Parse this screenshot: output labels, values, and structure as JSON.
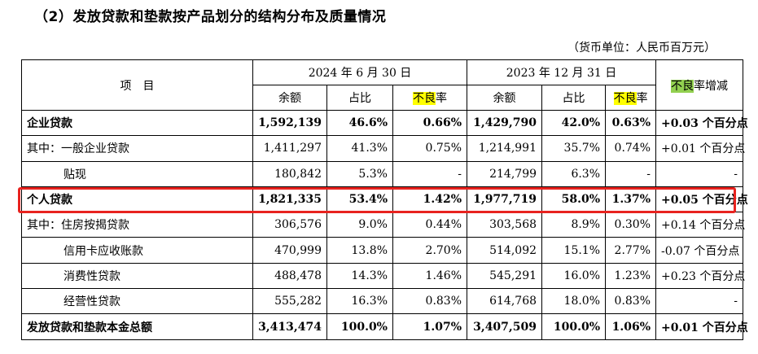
{
  "title": "（2）发放贷款和垫款按产品划分的结构分布及质量情况",
  "unit": "（货币单位：人民币百万元）",
  "header": {
    "item": "项　目",
    "period1": "2024 年 6 月 30 日",
    "period2": "2023 年 12 月 31 日",
    "change_hl": "不良",
    "change_rest": "率增减",
    "balance": "余额",
    "share": "占比",
    "npl_hl": "不良",
    "npl_rest": "率"
  },
  "rows": [
    {
      "label": "企业贷款",
      "bal1": "1,592,139",
      "share1": "46.6%",
      "npl1": "0.66%",
      "bal2": "1,429,790",
      "share2": "42.0%",
      "npl2": "0.63%",
      "chg": "+0.03 个百分点"
    },
    {
      "label": "其中：一般企业贷款",
      "bal1": "1,411,297",
      "share1": "41.3%",
      "npl1": "0.75%",
      "bal2": "1,214,991",
      "share2": "35.7%",
      "npl2": "0.74%",
      "chg": "+0.01 个百分点"
    },
    {
      "label": "贴现",
      "bal1": "180,842",
      "share1": "5.3%",
      "npl1": "-",
      "bal2": "214,799",
      "share2": "6.3%",
      "npl2": "-",
      "chg": "-"
    },
    {
      "label": "个人贷款",
      "bal1": "1,821,335",
      "share1": "53.4%",
      "npl1": "1.42%",
      "bal2": "1,977,719",
      "share2": "58.0%",
      "npl2": "1.37%",
      "chg": "+0.05 个百分点"
    },
    {
      "label": "其中：住房按揭贷款",
      "bal1": "306,576",
      "share1": "9.0%",
      "npl1": "0.44%",
      "bal2": "303,568",
      "share2": "8.9%",
      "npl2": "0.30%",
      "chg": "+0.14 个百分点"
    },
    {
      "label": "信用卡应收账款",
      "bal1": "470,999",
      "share1": "13.8%",
      "npl1": "2.70%",
      "bal2": "514,092",
      "share2": "15.1%",
      "npl2": "2.77%",
      "chg": "-0.07 个百分点"
    },
    {
      "label": "消费性贷款",
      "bal1": "488,478",
      "share1": "14.3%",
      "npl1": "1.46%",
      "bal2": "545,291",
      "share2": "16.0%",
      "npl2": "1.23%",
      "chg": "+0.23 个百分点"
    },
    {
      "label": "经营性贷款",
      "bal1": "555,282",
      "share1": "16.3%",
      "npl1": "0.83%",
      "bal2": "614,768",
      "share2": "18.0%",
      "npl2": "0.83%",
      "chg": "-"
    },
    {
      "label": "发放贷款和垫款本金总额",
      "bal1": "3,413,474",
      "share1": "100.0%",
      "npl1": "1.07%",
      "bal2": "3,407,509",
      "share2": "100.0%",
      "npl2": "1.06%",
      "chg": "+0.01 个百分点"
    }
  ],
  "colors": {
    "highlight_yellow": "#ffff00",
    "highlight_green": "#92d050",
    "annotation_box": "#e8231f"
  }
}
